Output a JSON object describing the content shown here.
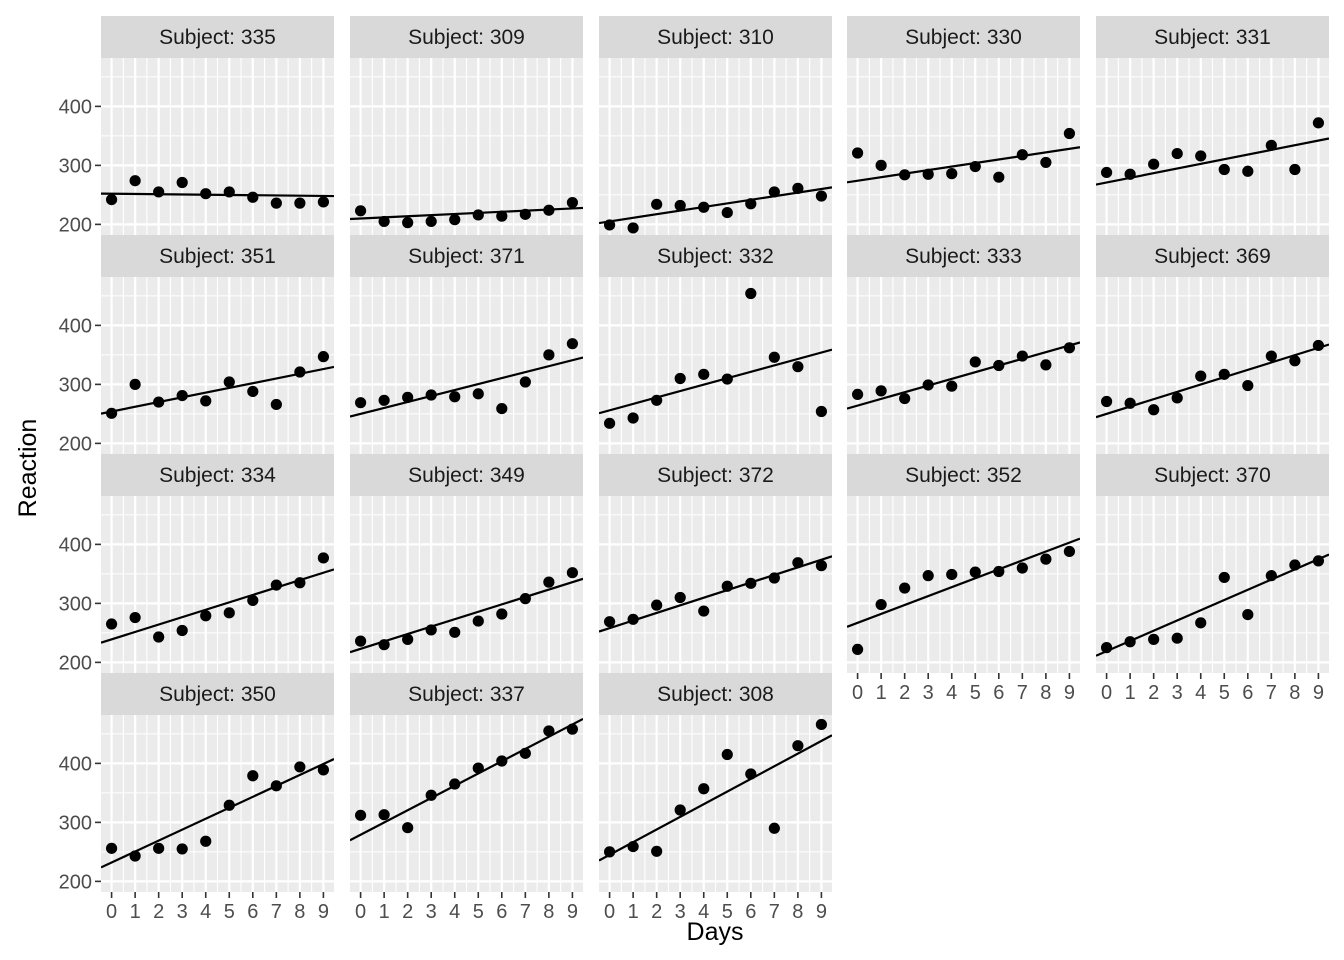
{
  "chart_data": {
    "type": "scatter",
    "xlabel": "Days",
    "ylabel": "Reaction",
    "x": [
      0,
      1,
      2,
      3,
      4,
      5,
      6,
      7,
      8,
      9
    ],
    "x_ticks": [
      "0",
      "1",
      "2",
      "3",
      "4",
      "5",
      "6",
      "7",
      "8",
      "9"
    ],
    "y_ticks": [
      200,
      300,
      400
    ],
    "ylim": [
      182,
      482
    ],
    "xlim": [
      -0.45,
      9.45
    ],
    "grid": true,
    "panel_background": "#EBEBEB",
    "strip_background": "#D9D9D9",
    "point_color": "#000000",
    "line_color": "#000000",
    "panels": [
      {
        "title": "Subject: 335",
        "values": [
          242,
          274,
          255,
          271,
          252,
          255,
          246,
          236,
          236,
          238
        ],
        "fit": [
          252.0,
          248.2
        ]
      },
      {
        "title": "Subject: 309",
        "values": [
          223,
          205,
          203,
          205,
          208,
          216,
          214,
          217,
          224,
          237
        ],
        "fit": [
          210.0,
          227.0
        ]
      },
      {
        "title": "Subject: 310",
        "values": [
          199,
          194,
          234,
          232,
          229,
          220,
          235,
          255,
          261,
          248
        ],
        "fit": [
          205.0,
          260.0
        ]
      },
      {
        "title": "Subject: 330",
        "values": [
          321,
          300,
          284,
          285,
          286,
          298,
          280,
          318,
          305,
          354
        ],
        "fit": [
          274.0,
          328.0
        ]
      },
      {
        "title": "Subject: 331",
        "values": [
          288,
          285,
          302,
          320,
          316,
          293,
          290,
          334,
          293,
          372
        ],
        "fit": [
          271.0,
          342.0
        ]
      },
      {
        "title": "Subject: 351",
        "values": [
          251,
          300,
          270,
          281,
          272,
          304,
          288,
          266,
          321,
          347
        ],
        "fit": [
          254.0,
          326.0
        ]
      },
      {
        "title": "Subject: 371",
        "values": [
          269,
          273,
          278,
          282,
          279,
          284,
          259,
          304,
          350,
          369
        ],
        "fit": [
          250.0,
          341.0
        ]
      },
      {
        "title": "Subject: 332",
        "values": [
          234,
          243,
          273,
          310,
          317,
          309,
          454,
          346,
          330,
          254
        ],
        "fit": [
          256.0,
          354.0
        ]
      },
      {
        "title": "Subject: 333",
        "values": [
          283,
          289,
          276,
          299,
          297,
          338,
          332,
          348,
          333,
          362
        ],
        "fit": [
          264.0,
          366.0
        ]
      },
      {
        "title": "Subject: 369",
        "values": [
          271,
          268,
          257,
          277,
          314,
          317,
          298,
          348,
          340,
          366
        ],
        "fit": [
          250.0,
          362.0
        ]
      },
      {
        "title": "Subject: 334",
        "values": [
          265,
          276,
          243,
          254,
          279,
          284,
          305,
          331,
          335,
          377
        ],
        "fit": [
          239.0,
          352.0
        ]
      },
      {
        "title": "Subject: 349",
        "values": [
          236,
          230,
          239,
          255,
          251,
          270,
          282,
          308,
          336,
          352
        ],
        "fit": [
          223.0,
          336.0
        ]
      },
      {
        "title": "Subject: 372",
        "values": [
          269,
          273,
          297,
          310,
          287,
          329,
          334,
          343,
          369,
          364
        ],
        "fit": [
          258.0,
          374.0
        ]
      },
      {
        "title": "Subject: 352",
        "values": [
          222,
          298,
          326,
          347,
          349,
          353,
          354,
          360,
          375,
          388
        ],
        "fit": [
          267.0,
          403.0
        ]
      },
      {
        "title": "Subject: 370",
        "values": [
          225,
          235,
          239,
          241,
          267,
          344,
          281,
          347,
          365,
          372
        ],
        "fit": [
          219.0,
          375.0
        ]
      },
      {
        "title": "Subject: 350",
        "values": [
          256,
          243,
          256,
          255,
          268,
          329,
          379,
          362,
          394,
          389
        ],
        "fit": [
          232.0,
          399.0
        ]
      },
      {
        "title": "Subject: 337",
        "values": [
          312,
          313,
          291,
          346,
          365,
          392,
          404,
          417,
          455,
          458
        ],
        "fit": [
          279.0,
          466.0
        ]
      },
      {
        "title": "Subject: 308",
        "values": [
          250,
          259,
          251,
          321,
          357,
          415,
          382,
          290,
          430,
          466
        ],
        "fit": [
          245.0,
          438.0
        ]
      }
    ]
  }
}
